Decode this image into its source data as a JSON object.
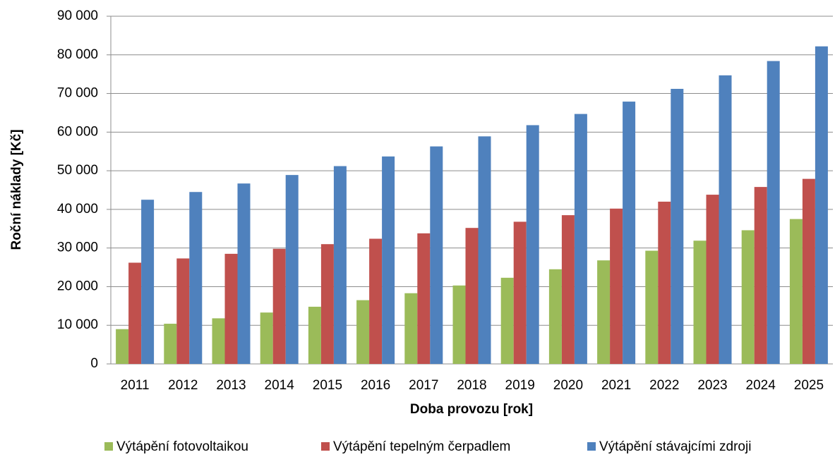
{
  "chart_data": {
    "type": "bar",
    "y_label": "Roční náklady [Kč]",
    "x_label": "Doba provozu [rok]",
    "categories": [
      "2011",
      "2012",
      "2013",
      "2014",
      "2015",
      "2016",
      "2017",
      "2018",
      "2019",
      "2020",
      "2021",
      "2022",
      "2023",
      "2024",
      "2025"
    ],
    "series": [
      {
        "name": "Výtápění fotovoltaikou",
        "color": "#9bbb59",
        "values": [
          9000,
          10400,
          11800,
          13300,
          14800,
          16500,
          18300,
          20300,
          22300,
          24500,
          26800,
          29300,
          31900,
          34600,
          37500
        ]
      },
      {
        "name": "Výtápění tepelným čerpadlem",
        "color": "#c0504d",
        "values": [
          26200,
          27300,
          28500,
          29800,
          31000,
          32400,
          33800,
          35200,
          36800,
          38500,
          40200,
          42000,
          43800,
          45800,
          47900
        ]
      },
      {
        "name": "Výtápění stávajcími zdroji",
        "color": "#4f81bd",
        "values": [
          42500,
          44500,
          46700,
          48900,
          51200,
          53700,
          56300,
          58900,
          61800,
          64700,
          67900,
          71200,
          74700,
          78400,
          82200
        ]
      }
    ],
    "ylim": [
      0,
      90000
    ],
    "yticks": [
      0,
      {
        "value": 10000,
        "label": "10 000"
      },
      {
        "value": 20000,
        "label": "20 000"
      },
      {
        "value": 30000,
        "label": "30 000"
      },
      {
        "value": 40000,
        "label": "40 000"
      },
      {
        "value": 50000,
        "label": "50 000"
      },
      {
        "value": 60000,
        "label": "60 000"
      },
      {
        "value": 70000,
        "label": "70 000"
      },
      {
        "value": 80000,
        "label": "80 000"
      },
      {
        "value": 90000,
        "label": "90 000"
      }
    ],
    "grid": true
  }
}
